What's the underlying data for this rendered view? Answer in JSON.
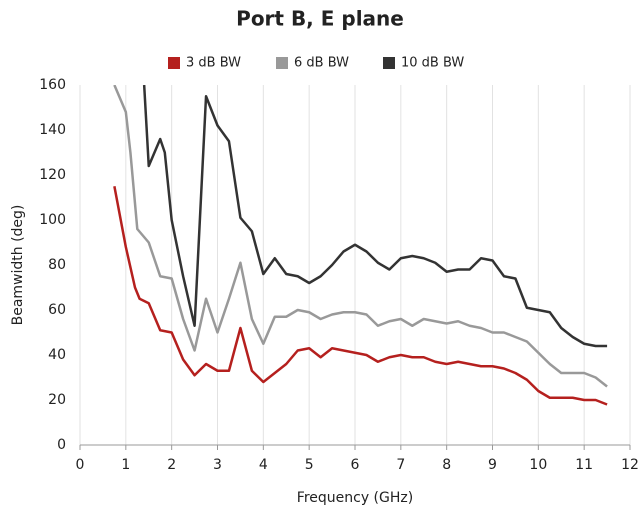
{
  "chart_data": {
    "type": "line",
    "title": "Port B, E plane",
    "xlabel": "Frequency (GHz)",
    "ylabel": "Beamwidth (deg)",
    "xlim": [
      0,
      12
    ],
    "xticks": [
      0,
      1,
      2,
      3,
      4,
      5,
      6,
      7,
      8,
      9,
      10,
      11,
      12
    ],
    "ylim": [
      0,
      160
    ],
    "yticks": [
      0,
      20,
      40,
      60,
      80,
      100,
      120,
      140,
      160
    ],
    "grid": "x",
    "legend": "top",
    "series": [
      {
        "name": "3 dB BW",
        "color": "#b5201e",
        "x": [
          0.75,
          1.0,
          1.2,
          1.3,
          1.5,
          1.75,
          2.0,
          2.25,
          2.5,
          2.75,
          3.0,
          3.25,
          3.5,
          3.75,
          4.0,
          4.25,
          4.5,
          4.75,
          5.0,
          5.25,
          5.5,
          5.75,
          6.0,
          6.25,
          6.5,
          6.75,
          7.0,
          7.25,
          7.5,
          7.75,
          8.0,
          8.25,
          8.5,
          8.75,
          9.0,
          9.25,
          9.5,
          9.75,
          10.0,
          10.25,
          10.5,
          10.75,
          11.0,
          11.25,
          11.5
        ],
        "values": [
          115,
          88,
          70,
          65,
          63,
          51,
          50,
          38,
          31,
          36,
          33,
          33,
          52,
          33,
          28,
          32,
          36,
          42,
          43,
          39,
          43,
          42,
          41,
          40,
          37,
          39,
          40,
          39,
          39,
          37,
          36,
          37,
          36,
          35,
          35,
          34,
          32,
          29,
          24,
          21,
          21,
          21,
          20,
          20,
          18
        ]
      },
      {
        "name": "6 dB BW",
        "color": "#999999",
        "x": [
          0.75,
          1.0,
          1.1,
          1.25,
          1.5,
          1.75,
          2.0,
          2.25,
          2.5,
          2.75,
          3.0,
          3.25,
          3.5,
          3.75,
          4.0,
          4.25,
          4.5,
          4.75,
          5.0,
          5.25,
          5.5,
          5.75,
          6.0,
          6.25,
          6.5,
          6.75,
          7.0,
          7.25,
          7.5,
          7.75,
          8.0,
          8.25,
          8.5,
          8.75,
          9.0,
          9.25,
          9.5,
          9.75,
          10.0,
          10.25,
          10.5,
          10.75,
          11.0,
          11.25,
          11.5
        ],
        "values": [
          160,
          148,
          130,
          96,
          90,
          75,
          74,
          56,
          42,
          65,
          50,
          65,
          81,
          56,
          45,
          57,
          57,
          60,
          59,
          56,
          58,
          59,
          59,
          58,
          53,
          55,
          56,
          53,
          56,
          55,
          54,
          55,
          53,
          52,
          50,
          50,
          48,
          46,
          41,
          36,
          32,
          32,
          32,
          30,
          26
        ]
      },
      {
        "name": "10 dB BW",
        "color": "#333333",
        "x": [
          1.4,
          1.5,
          1.75,
          1.85,
          2.0,
          2.25,
          2.5,
          2.75,
          3.0,
          3.25,
          3.5,
          3.75,
          4.0,
          4.25,
          4.5,
          4.75,
          5.0,
          5.25,
          5.5,
          5.75,
          6.0,
          6.25,
          6.5,
          6.75,
          7.0,
          7.25,
          7.5,
          7.75,
          8.0,
          8.25,
          8.5,
          8.75,
          9.0,
          9.25,
          9.5,
          9.75,
          10.0,
          10.25,
          10.5,
          10.75,
          11.0,
          11.25,
          11.5
        ],
        "values": [
          160,
          124,
          136,
          130,
          100,
          75,
          53,
          155,
          142,
          135,
          101,
          95,
          76,
          83,
          76,
          75,
          72,
          75,
          80,
          86,
          89,
          86,
          81,
          78,
          83,
          84,
          83,
          81,
          77,
          78,
          78,
          83,
          82,
          75,
          74,
          61,
          60,
          59,
          52,
          48,
          45,
          44,
          44
        ]
      }
    ]
  }
}
